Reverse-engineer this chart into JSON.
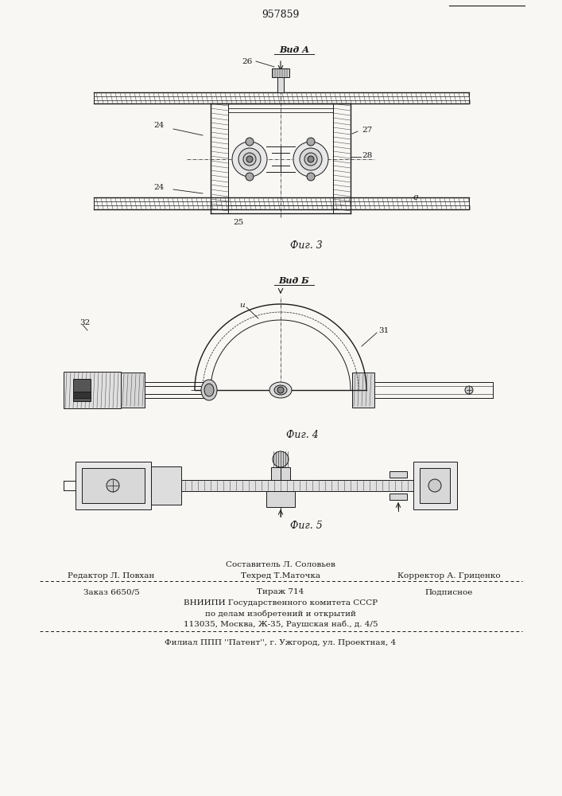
{
  "patent_number": "957859",
  "background_color": "#f8f7f4",
  "line_color": "#1a1a1a",
  "fig3_label": "Фиг. 3",
  "fig4_label": "Фиг. 4",
  "fig5_label": "Фиг. 5",
  "vid_a_label": "Вид А",
  "vid_b_label": "Вид Б",
  "footer_line1_center_top": "Составитель Л. Соловьев",
  "footer_line1_center_bot": "Техред Т.Маточка",
  "footer_line1_left": "Редактор Л. Повхан",
  "footer_line1_right": "Корректор А. Гриценко",
  "footer_line2_left": "Заказ 6650/5",
  "footer_line2_center": "Тираж 714",
  "footer_line2_right": "Подписное",
  "footer_line3": "ВНИИПИ Государственного комитета СССР",
  "footer_line4": "по делам изобретений и открытий",
  "footer_line5": "113035, Москва, Ж-35, Раушская наб., д. 4/5",
  "footer_line6": "Филиал ППП ''Патент'', г. Ужгород, ул. Проектная, 4"
}
